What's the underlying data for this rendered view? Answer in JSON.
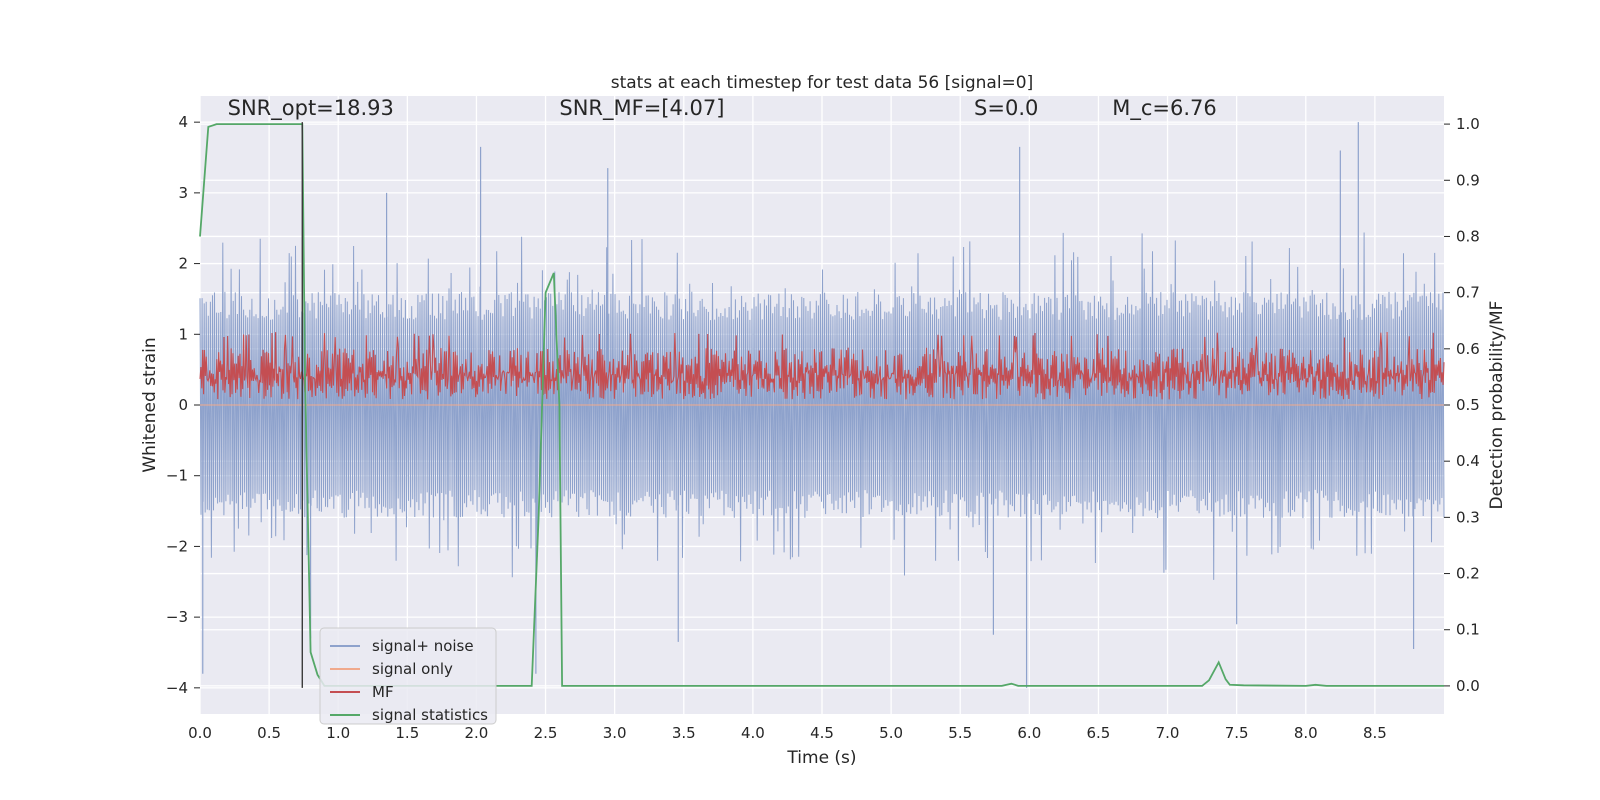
{
  "chart_data": {
    "type": "line",
    "title": "stats at each timestep for test data 56 [signal=0]",
    "xlabel": "Time (s)",
    "ylabel_left": "Whitened strain",
    "ylabel_right": "Detection probability/MF",
    "xlim": [
      0.0,
      9.0
    ],
    "ylim_left": [
      -4.37,
      4.37
    ],
    "ylim_right": [
      -0.05,
      1.05
    ],
    "xticks": [
      "0.0",
      "0.5",
      "1.0",
      "1.5",
      "2.0",
      "2.5",
      "3.0",
      "3.5",
      "4.0",
      "4.5",
      "5.0",
      "5.5",
      "6.0",
      "6.5",
      "7.0",
      "7.5",
      "8.0",
      "8.5"
    ],
    "yticks_left": [
      "4",
      "3",
      "2",
      "1",
      "0",
      "−1",
      "−2",
      "−3",
      "−4"
    ],
    "yticks_right": [
      "1.0",
      "0.9",
      "0.8",
      "0.7",
      "0.6",
      "0.5",
      "0.4",
      "0.3",
      "0.2",
      "0.1",
      "0.0"
    ],
    "grid": true,
    "legend_position": "lower-left",
    "annotations": [
      {
        "text": "SNR_opt=18.93",
        "x": 0.2,
        "y": 4.1
      },
      {
        "text": "SNR_MF=[4.07]",
        "x": 2.6,
        "y": 4.1
      },
      {
        "text": "S=0.0",
        "x": 5.6,
        "y": 4.1
      },
      {
        "text": "M_c=6.76",
        "x": 6.6,
        "y": 4.1
      }
    ],
    "marker_line": {
      "x": 0.74,
      "y_min": -4.0,
      "y_max": 4.0,
      "color": "#3a3a3a"
    },
    "series": [
      {
        "name": "signal+ noise",
        "axis": "left",
        "color": "#8ea2cc",
        "kind": "noise",
        "envelope": 1.6,
        "spikes": [
          {
            "x": 2.03,
            "y": 3.65
          },
          {
            "x": 2.43,
            "y": -3.8
          },
          {
            "x": 2.95,
            "y": 3.35
          },
          {
            "x": 3.46,
            "y": -3.35
          },
          {
            "x": 5.93,
            "y": 3.65
          },
          {
            "x": 5.98,
            "y": -4.0
          },
          {
            "x": 5.74,
            "y": -3.25
          },
          {
            "x": 8.38,
            "y": 4.0
          },
          {
            "x": 8.25,
            "y": 3.6
          },
          {
            "x": 8.78,
            "y": -3.45
          },
          {
            "x": 0.02,
            "y": -3.8
          },
          {
            "x": 0.8,
            "y": -3.3
          },
          {
            "x": 7.5,
            "y": -3.1
          },
          {
            "x": 1.35,
            "y": 3.0
          }
        ]
      },
      {
        "name": "signal only",
        "axis": "left",
        "color": "#f0a98c",
        "kind": "line",
        "x": [
          0.0,
          9.0
        ],
        "y": [
          0.0,
          0.0
        ]
      },
      {
        "name": "MF",
        "axis": "right",
        "color": "#c44e52",
        "kind": "mf",
        "baseline": 0.5,
        "mean": 0.535,
        "max": 0.62
      },
      {
        "name": "signal statistics",
        "axis": "right",
        "color": "#55a868",
        "kind": "line",
        "x": [
          0.0,
          0.06,
          0.12,
          0.2,
          0.4,
          0.6,
          0.7,
          0.74,
          0.76,
          0.8,
          0.85,
          0.9,
          1.0,
          2.4,
          2.45,
          2.5,
          2.56,
          2.6,
          2.62,
          3.0,
          5.8,
          5.87,
          5.92,
          6.0,
          7.0,
          7.25,
          7.3,
          7.37,
          7.42,
          7.45,
          7.55,
          8.0,
          8.07,
          8.15,
          9.0
        ],
        "y": [
          0.8,
          0.995,
          1.0,
          1.0,
          1.0,
          1.0,
          1.0,
          1.0,
          0.55,
          0.06,
          0.02,
          0.0,
          0.0,
          0.0,
          0.3,
          0.7,
          0.735,
          0.5,
          0.0,
          0.0,
          0.0,
          0.004,
          0.0,
          0.0,
          0.0,
          0.0,
          0.01,
          0.042,
          0.012,
          0.002,
          0.001,
          0.0,
          0.002,
          0.0,
          0.0
        ]
      }
    ]
  }
}
